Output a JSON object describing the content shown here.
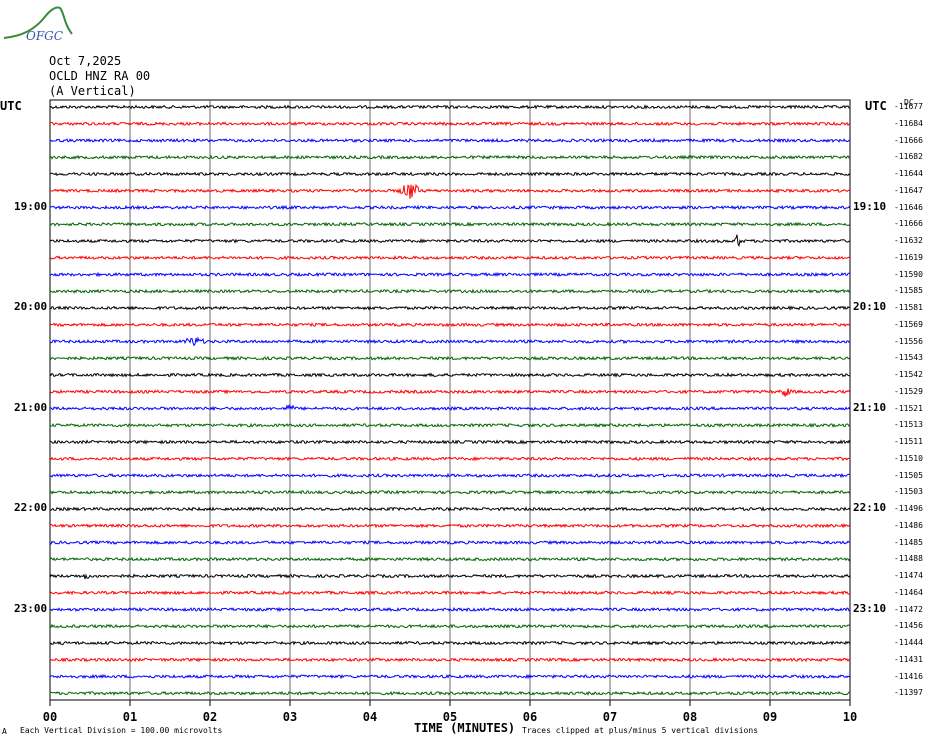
{
  "logo": {
    "text": "OFGC",
    "color": "#3a8a3a",
    "text_color": "#3355aa"
  },
  "header": {
    "date": "Oct 7,2025",
    "station": "OCLD HNZ RA 00",
    "component": "(A Vertical)"
  },
  "utc_left": "UTC",
  "utc_right": "UTC",
  "dc_label": "DC",
  "footer": {
    "scale_note": "Each Vertical Division = 100.00 microvolts",
    "clip_note": "Traces clipped at plus/minus 5 vertical divisions",
    "corner": "A"
  },
  "chart_data": {
    "type": "line",
    "title": "",
    "xlabel": "TIME (MINUTES)",
    "xlim": [
      0,
      10
    ],
    "x_ticks": [
      "00",
      "01",
      "02",
      "03",
      "04",
      "05",
      "06",
      "07",
      "08",
      "09",
      "10"
    ],
    "trace_colors": [
      "#000000",
      "#ff0000",
      "#0000ff",
      "#006400"
    ],
    "trace_count": 36,
    "left_time_labels": [
      {
        "trace": 6,
        "label": "19:00"
      },
      {
        "trace": 12,
        "label": "20:00"
      },
      {
        "trace": 18,
        "label": "21:00"
      },
      {
        "trace": 24,
        "label": "22:00"
      },
      {
        "trace": 30,
        "label": "23:00"
      }
    ],
    "right_time_labels": [
      {
        "trace": 6,
        "label": "19:10"
      },
      {
        "trace": 12,
        "label": "20:10"
      },
      {
        "trace": 18,
        "label": "21:10"
      },
      {
        "trace": 24,
        "label": "22:10"
      },
      {
        "trace": 30,
        "label": "23:10"
      }
    ],
    "right_values": [
      "-11677",
      "-11684",
      "-11666",
      "-11682",
      "-11644",
      "-11647",
      "-11646",
      "-11666",
      "-11632",
      "-11619",
      "-11590",
      "-11585",
      "-11581",
      "-11569",
      "-11556",
      "-11543",
      "-11542",
      "-11529",
      "-11521",
      "-11513",
      "-11511",
      "-11510",
      "-11505",
      "-11503",
      "-11496",
      "-11486",
      "-11485",
      "-11488",
      "-11474",
      "-11464",
      "-11472",
      "-11456",
      "-11444",
      "-11431",
      "-11416",
      "-11397"
    ],
    "events": [
      {
        "trace": 5,
        "minute": 4.5,
        "amplitude": 9,
        "width": 0.15
      },
      {
        "trace": 8,
        "minute": 8.6,
        "amplitude": 10,
        "width": 0.04
      },
      {
        "trace": 14,
        "minute": 1.8,
        "amplitude": 4,
        "width": 0.15
      },
      {
        "trace": 16,
        "minute": 4.8,
        "amplitude": 4,
        "width": 0.03
      },
      {
        "trace": 17,
        "minute": 9.2,
        "amplitude": 5,
        "width": 0.08
      },
      {
        "trace": 18,
        "minute": 3.0,
        "amplitude": 3,
        "width": 0.08
      },
      {
        "trace": 28,
        "minute": 0.45,
        "amplitude": 7,
        "width": 0.03
      }
    ]
  }
}
